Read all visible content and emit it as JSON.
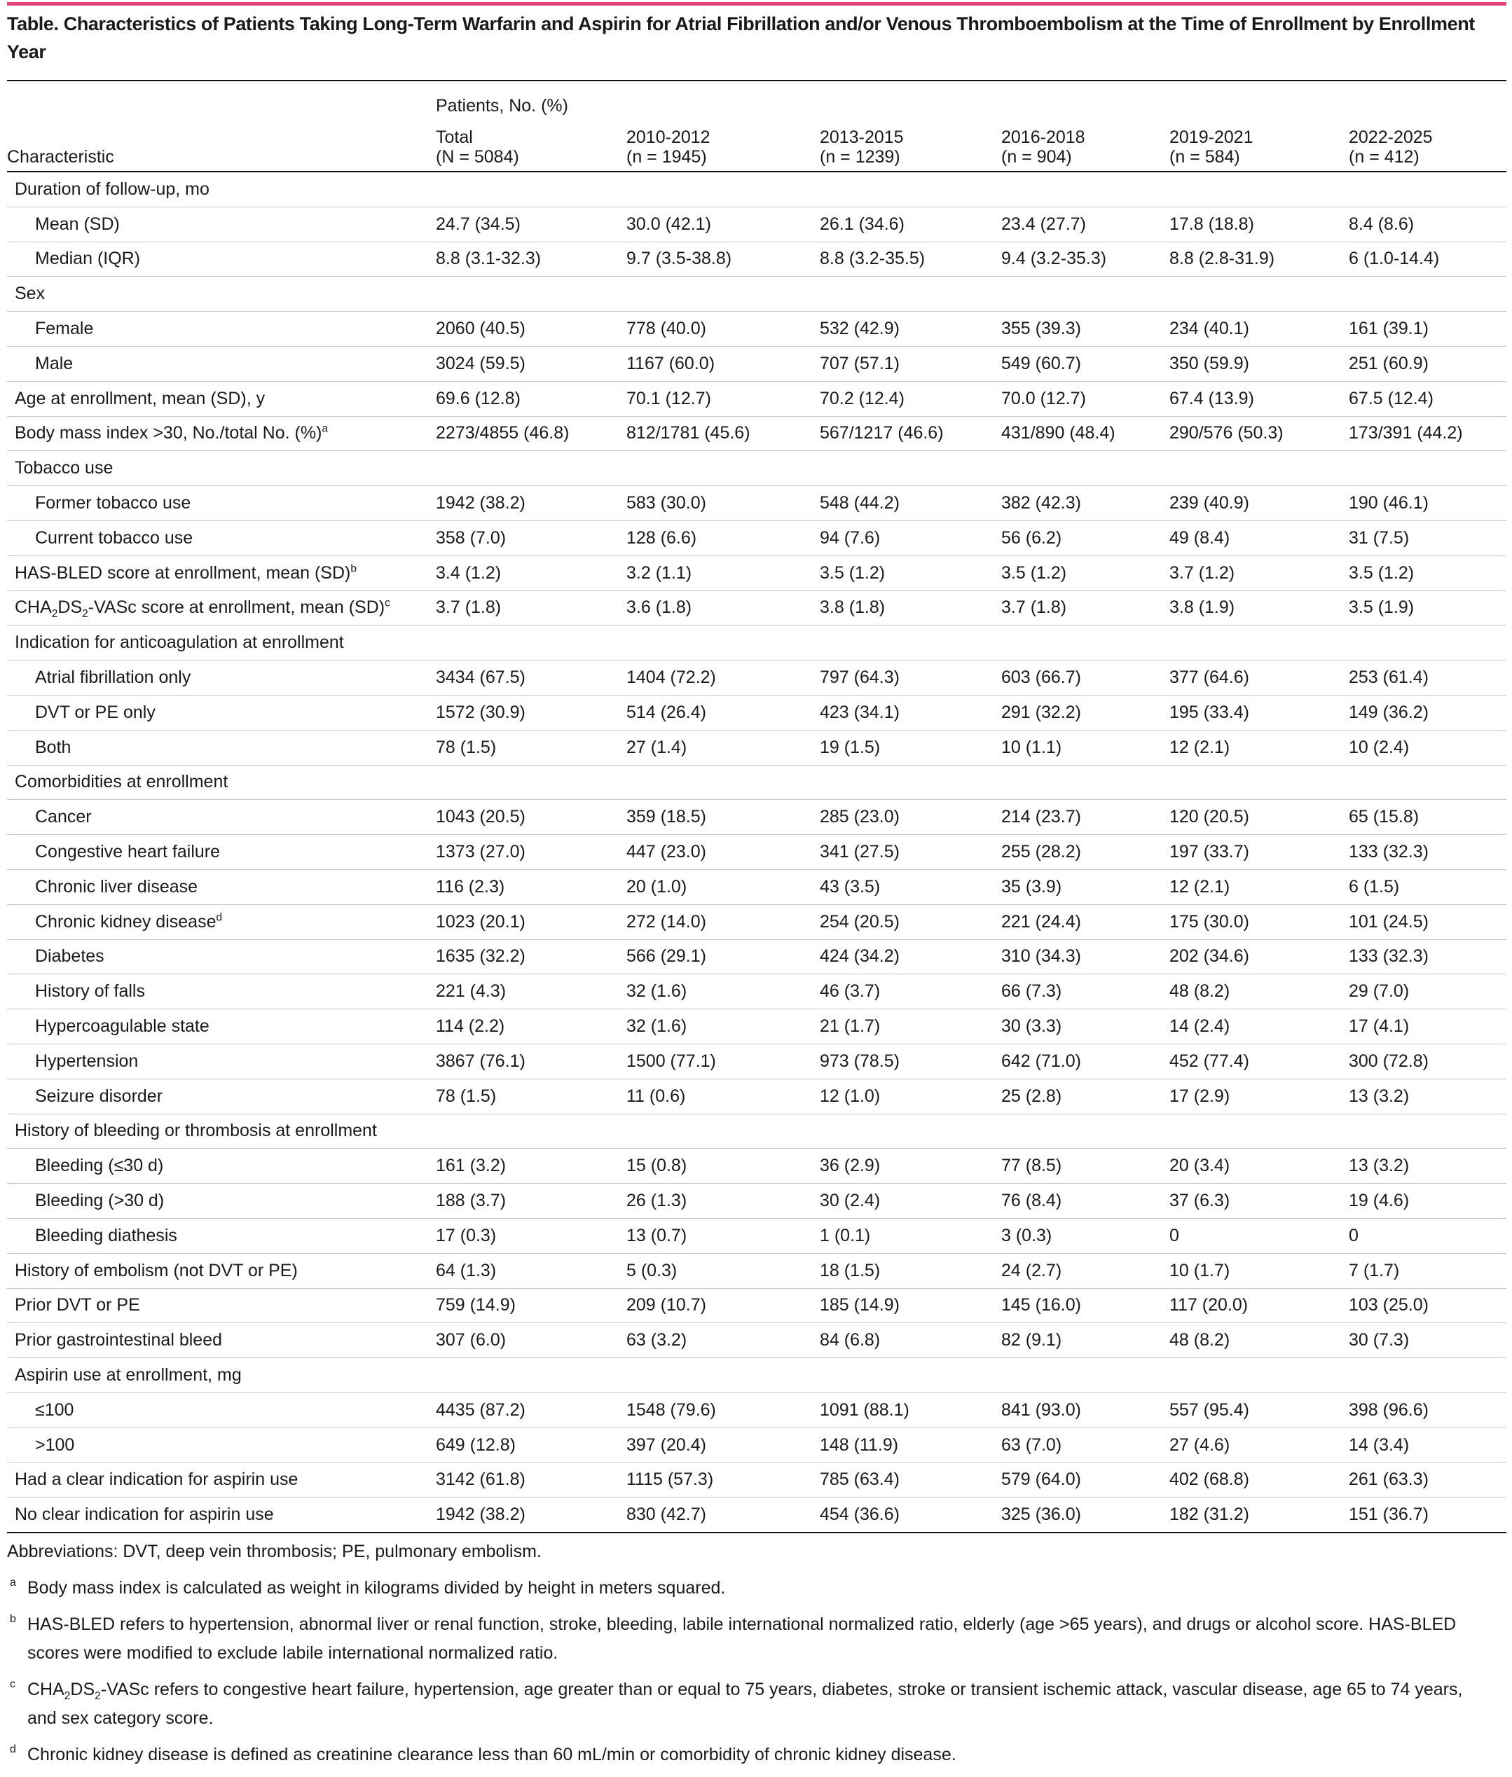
{
  "table": {
    "title": "Table. Characteristics of Patients Taking Long-Term Warfarin and Aspirin for Atrial Fibrillation and/or Venous Thromboembolism at the Time of Enrollment by Enrollment Year",
    "spanner": "Patients, No. (%)",
    "stub_header": "Characteristic",
    "columns": [
      [
        "Total",
        "(N = 5084)"
      ],
      [
        "2010-2012",
        "(n = 1945)"
      ],
      [
        "2013-2015",
        "(n = 1239)"
      ],
      [
        "2016-2018",
        "(n = 904)"
      ],
      [
        "2019-2021",
        "(n = 584)"
      ],
      [
        "2022-2025",
        "(n = 412)"
      ]
    ],
    "rows": [
      {
        "label": [
          "Duration of follow-up, mo"
        ]
      },
      {
        "label": [
          "Mean (SD)"
        ],
        "indent": true,
        "cells": [
          "24.7 (34.5)",
          "30.0 (42.1)",
          "26.1 (34.6)",
          "23.4 (27.7)",
          "17.8 (18.8)",
          "8.4 (8.6)"
        ]
      },
      {
        "label": [
          "Median (IQR)"
        ],
        "indent": true,
        "cells": [
          "8.8 (3.1-32.3)",
          "9.7 (3.5-38.8)",
          "8.8 (3.2-35.5)",
          "9.4 (3.2-35.3)",
          "8.8 (2.8-31.9)",
          "6 (1.0-14.4)"
        ]
      },
      {
        "label": [
          "Sex"
        ]
      },
      {
        "label": [
          "Female"
        ],
        "indent": true,
        "cells": [
          "2060 (40.5)",
          "778 (40.0)",
          "532 (42.9)",
          "355 (39.3)",
          "234 (40.1)",
          "161 (39.1)"
        ]
      },
      {
        "label": [
          "Male"
        ],
        "indent": true,
        "cells": [
          "3024 (59.5)",
          "1167 (60.0)",
          "707 (57.1)",
          "549 (60.7)",
          "350 (59.9)",
          "251 (60.9)"
        ]
      },
      {
        "label": [
          "Age at enrollment, mean (SD), y"
        ],
        "cells": [
          "69.6 (12.8)",
          "70.1 (12.7)",
          "70.2 (12.4)",
          "70.0 (12.7)",
          "67.4 (13.9)",
          "67.5 (12.4)"
        ]
      },
      {
        "label": [
          "Body mass index >30, No./total No. (%)",
          {
            "text": "a",
            "style": "sup"
          }
        ],
        "cells": [
          "2273/4855 (46.8)",
          "812/1781 (45.6)",
          "567/1217 (46.6)",
          "431/890 (48.4)",
          "290/576 (50.3)",
          "173/391 (44.2)"
        ]
      },
      {
        "label": [
          "Tobacco use"
        ]
      },
      {
        "label": [
          "Former tobacco use"
        ],
        "indent": true,
        "cells": [
          "1942 (38.2)",
          "583 (30.0)",
          "548 (44.2)",
          "382 (42.3)",
          "239 (40.9)",
          "190 (46.1)"
        ]
      },
      {
        "label": [
          "Current tobacco use"
        ],
        "indent": true,
        "cells": [
          "358 (7.0)",
          "128 (6.6)",
          "94 (7.6)",
          "56 (6.2)",
          "49 (8.4)",
          "31 (7.5)"
        ]
      },
      {
        "label": [
          "HAS-BLED score at enrollment, mean (SD)",
          {
            "text": "b",
            "style": "sup"
          }
        ],
        "cells": [
          "3.4 (1.2)",
          "3.2 (1.1)",
          "3.5 (1.2)",
          "3.5 (1.2)",
          "3.7 (1.2)",
          "3.5 (1.2)"
        ]
      },
      {
        "label": [
          "CHA",
          {
            "text": "2",
            "style": "sub"
          },
          "DS",
          {
            "text": "2",
            "style": "sub"
          },
          "-VASc score at enrollment, mean (SD)",
          {
            "text": "c",
            "style": "sup"
          }
        ],
        "cells": [
          "3.7 (1.8)",
          "3.6 (1.8)",
          "3.8 (1.8)",
          "3.7 (1.8)",
          "3.8 (1.9)",
          "3.5 (1.9)"
        ]
      },
      {
        "label": [
          "Indication for anticoagulation at enrollment"
        ]
      },
      {
        "label": [
          "Atrial fibrillation only"
        ],
        "indent": true,
        "cells": [
          "3434 (67.5)",
          "1404 (72.2)",
          "797 (64.3)",
          "603 (66.7)",
          "377 (64.6)",
          "253 (61.4)"
        ]
      },
      {
        "label": [
          "DVT or PE only"
        ],
        "indent": true,
        "cells": [
          "1572 (30.9)",
          "514 (26.4)",
          "423 (34.1)",
          "291 (32.2)",
          "195 (33.4)",
          "149 (36.2)"
        ]
      },
      {
        "label": [
          "Both"
        ],
        "indent": true,
        "cells": [
          "78 (1.5)",
          "27 (1.4)",
          "19 (1.5)",
          "10 (1.1)",
          "12 (2.1)",
          "10 (2.4)"
        ]
      },
      {
        "label": [
          "Comorbidities at enrollment"
        ]
      },
      {
        "label": [
          "Cancer"
        ],
        "indent": true,
        "cells": [
          "1043 (20.5)",
          "359 (18.5)",
          "285 (23.0)",
          "214 (23.7)",
          "120 (20.5)",
          "65 (15.8)"
        ]
      },
      {
        "label": [
          "Congestive heart failure"
        ],
        "indent": true,
        "cells": [
          "1373 (27.0)",
          "447 (23.0)",
          "341 (27.5)",
          "255 (28.2)",
          "197 (33.7)",
          "133 (32.3)"
        ]
      },
      {
        "label": [
          "Chronic liver disease"
        ],
        "indent": true,
        "cells": [
          "116 (2.3)",
          "20 (1.0)",
          "43 (3.5)",
          "35 (3.9)",
          "12 (2.1)",
          "6 (1.5)"
        ]
      },
      {
        "label": [
          "Chronic kidney disease",
          {
            "text": "d",
            "style": "sup"
          }
        ],
        "indent": true,
        "cells": [
          "1023 (20.1)",
          "272 (14.0)",
          "254 (20.5)",
          "221 (24.4)",
          "175 (30.0)",
          "101 (24.5)"
        ]
      },
      {
        "label": [
          "Diabetes"
        ],
        "indent": true,
        "cells": [
          "1635 (32.2)",
          "566 (29.1)",
          "424 (34.2)",
          "310 (34.3)",
          "202 (34.6)",
          "133 (32.3)"
        ]
      },
      {
        "label": [
          "History of falls"
        ],
        "indent": true,
        "cells": [
          "221 (4.3)",
          "32 (1.6)",
          "46 (3.7)",
          "66 (7.3)",
          "48 (8.2)",
          "29 (7.0)"
        ]
      },
      {
        "label": [
          "Hypercoagulable state"
        ],
        "indent": true,
        "cells": [
          "114 (2.2)",
          "32 (1.6)",
          "21 (1.7)",
          "30 (3.3)",
          "14 (2.4)",
          "17 (4.1)"
        ]
      },
      {
        "label": [
          "Hypertension"
        ],
        "indent": true,
        "cells": [
          "3867 (76.1)",
          "1500 (77.1)",
          "973 (78.5)",
          "642 (71.0)",
          "452 (77.4)",
          "300 (72.8)"
        ]
      },
      {
        "label": [
          "Seizure disorder"
        ],
        "indent": true,
        "cells": [
          "78 (1.5)",
          "11 (0.6)",
          "12 (1.0)",
          "25 (2.8)",
          "17 (2.9)",
          "13 (3.2)"
        ]
      },
      {
        "label": [
          "History of bleeding or thrombosis at enrollment"
        ]
      },
      {
        "label": [
          "Bleeding (≤30 d)"
        ],
        "indent": true,
        "cells": [
          "161 (3.2)",
          "15 (0.8)",
          "36 (2.9)",
          "77 (8.5)",
          "20 (3.4)",
          "13 (3.2)"
        ]
      },
      {
        "label": [
          "Bleeding (>30 d)"
        ],
        "indent": true,
        "cells": [
          "188 (3.7)",
          "26 (1.3)",
          "30 (2.4)",
          "76 (8.4)",
          "37 (6.3)",
          "19 (4.6)"
        ]
      },
      {
        "label": [
          "Bleeding diathesis"
        ],
        "indent": true,
        "cells": [
          "17 (0.3)",
          "13 (0.7)",
          "1 (0.1)",
          "3 (0.3)",
          "0",
          "0"
        ]
      },
      {
        "label": [
          "History of embolism (not DVT or PE)"
        ],
        "cells": [
          "64 (1.3)",
          "5 (0.3)",
          "18 (1.5)",
          "24 (2.7)",
          "10 (1.7)",
          "7 (1.7)"
        ]
      },
      {
        "label": [
          "Prior DVT or PE"
        ],
        "cells": [
          "759 (14.9)",
          "209 (10.7)",
          "185 (14.9)",
          "145 (16.0)",
          "117 (20.0)",
          "103 (25.0)"
        ]
      },
      {
        "label": [
          "Prior gastrointestinal bleed"
        ],
        "cells": [
          "307 (6.0)",
          "63 (3.2)",
          "84 (6.8)",
          "82 (9.1)",
          "48 (8.2)",
          "30 (7.3)"
        ]
      },
      {
        "label": [
          "Aspirin use at enrollment, mg"
        ]
      },
      {
        "label": [
          "≤100"
        ],
        "indent": true,
        "cells": [
          "4435 (87.2)",
          "1548 (79.6)",
          "1091 (88.1)",
          "841 (93.0)",
          "557 (95.4)",
          "398 (96.6)"
        ]
      },
      {
        "label": [
          ">100"
        ],
        "indent": true,
        "cells": [
          "649 (12.8)",
          "397 (20.4)",
          "148 (11.9)",
          "63 (7.0)",
          "27 (4.6)",
          "14 (3.4)"
        ]
      },
      {
        "label": [
          "Had a clear indication for aspirin use"
        ],
        "cells": [
          "3142 (61.8)",
          "1115 (57.3)",
          "785 (63.4)",
          "579 (64.0)",
          "402 (68.8)",
          "261 (63.3)"
        ]
      },
      {
        "label": [
          "No clear indication for aspirin use"
        ],
        "cells": [
          "1942 (38.2)",
          "830 (42.7)",
          "454 (36.6)",
          "325 (36.0)",
          "182 (31.2)",
          "151 (36.7)"
        ]
      }
    ],
    "abbreviations": "Abbreviations: DVT, deep vein thrombosis; PE, pulmonary embolism.",
    "notes": [
      {
        "mark": "a",
        "text": [
          "Body mass index is calculated as weight in kilograms divided by height in meters squared."
        ]
      },
      {
        "mark": "b",
        "text": [
          "HAS-BLED refers to hypertension, abnormal liver or renal function, stroke, bleeding, labile international normalized ratio, elderly (age >65 years), and drugs or alcohol score. HAS-BLED scores were modified to exclude labile international normalized ratio."
        ]
      },
      {
        "mark": "c",
        "text": [
          "CHA",
          {
            "text": "2",
            "style": "sub"
          },
          "DS",
          {
            "text": "2",
            "style": "sub"
          },
          "-VASc refers to congestive heart failure, hypertension, age greater than or equal to 75 years, diabetes, stroke or transient ischemic attack, vascular disease, age 65 to 74 years, and sex category score."
        ]
      },
      {
        "mark": "d",
        "text": [
          "Chronic kidney disease is defined as creatinine clearance less than 60 mL/min or comorbidity of chronic kidney disease."
        ]
      }
    ]
  }
}
